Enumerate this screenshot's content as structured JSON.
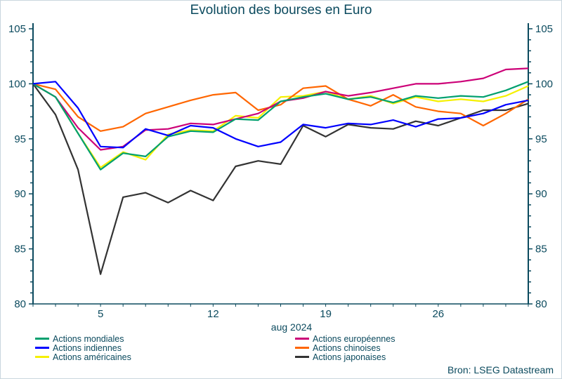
{
  "chart_data": {
    "type": "line",
    "title": "Evolution des bourses en Euro",
    "xlabel": "aug 2024",
    "x": [
      "2024-07-31",
      "2024-08-01",
      "2024-08-02",
      "2024-08-05",
      "2024-08-06",
      "2024-08-07",
      "2024-08-08",
      "2024-08-09",
      "2024-08-12",
      "2024-08-13",
      "2024-08-14",
      "2024-08-15",
      "2024-08-16",
      "2024-08-19",
      "2024-08-20",
      "2024-08-21",
      "2024-08-22",
      "2024-08-23",
      "2024-08-26",
      "2024-08-27",
      "2024-08-28",
      "2024-08-29",
      "2024-08-30"
    ],
    "x_tick_labels": [
      {
        "date": "2024-08-05",
        "label": "5"
      },
      {
        "date": "2024-08-12",
        "label": "12"
      },
      {
        "date": "2024-08-19",
        "label": "19"
      },
      {
        "date": "2024-08-26",
        "label": "26"
      }
    ],
    "ylim": [
      80,
      105
    ],
    "y_ticks": [
      80,
      85,
      90,
      95,
      100,
      105
    ],
    "y_axes": [
      "left",
      "right"
    ],
    "grid": false,
    "legend_placement": "bottom",
    "series": [
      {
        "name": "Actions mondiales",
        "color": "#00a06e",
        "values": [
          100,
          98.8,
          95.5,
          92.2,
          93.7,
          93.4,
          95.2,
          95.7,
          95.6,
          96.8,
          96.7,
          98.4,
          98.8,
          99.1,
          98.6,
          98.8,
          98.3,
          98.9,
          98.7,
          98.9,
          98.8,
          99.4,
          100.2
        ]
      },
      {
        "name": "Actions européennes",
        "color": "#cc0077",
        "values": [
          100,
          98.8,
          96.0,
          94.0,
          94.3,
          95.8,
          95.9,
          96.4,
          96.3,
          96.8,
          97.3,
          98.4,
          98.7,
          99.3,
          98.9,
          99.2,
          99.6,
          100.0,
          100.0,
          100.2,
          100.5,
          101.3,
          101.4
        ]
      },
      {
        "name": "Actions indiennes",
        "color": "#0000ff",
        "values": [
          100,
          100.2,
          97.8,
          94.3,
          94.2,
          95.9,
          95.3,
          96.2,
          96.0,
          95.0,
          94.3,
          94.7,
          96.3,
          96.0,
          96.4,
          96.3,
          96.7,
          96.1,
          96.8,
          96.9,
          97.3,
          98.1,
          98.5
        ]
      },
      {
        "name": "Actions chinoises",
        "color": "#ff6600",
        "values": [
          100,
          99.5,
          97.0,
          95.7,
          96.1,
          97.3,
          97.9,
          98.5,
          99.0,
          99.2,
          97.6,
          98.1,
          99.6,
          99.8,
          98.6,
          98.0,
          99.0,
          97.9,
          97.5,
          97.3,
          96.2,
          97.3,
          98.6
        ]
      },
      {
        "name": "Actions américaines",
        "color": "#f5f000",
        "values": [
          100,
          98.8,
          95.5,
          92.4,
          93.8,
          93.1,
          95.4,
          95.8,
          95.7,
          97.1,
          96.9,
          98.8,
          98.9,
          99.3,
          98.6,
          98.9,
          98.2,
          98.8,
          98.4,
          98.6,
          98.4,
          98.9,
          99.8
        ]
      },
      {
        "name": "Actions japonaises",
        "color": "#333333",
        "values": [
          100,
          97.2,
          92.2,
          82.7,
          89.7,
          90.1,
          89.2,
          90.3,
          89.4,
          92.5,
          93.0,
          92.7,
          96.2,
          95.2,
          96.3,
          96.0,
          95.9,
          96.6,
          96.2,
          96.9,
          97.6,
          97.6,
          98.2
        ]
      }
    ],
    "source": "Bron: LSEG Datastream"
  }
}
